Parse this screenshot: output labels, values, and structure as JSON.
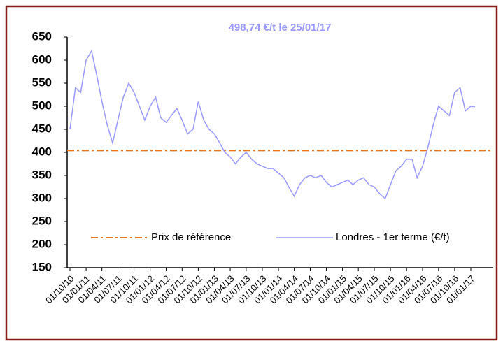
{
  "chart_data": {
    "type": "line",
    "title": "498,74 €/t le 25/01/17",
    "x": [
      "01/10/10",
      "01/11/10",
      "01/12/10",
      "01/01/11",
      "01/02/11",
      "01/03/11",
      "01/04/11",
      "01/05/11",
      "01/06/11",
      "01/07/11",
      "01/08/11",
      "01/09/11",
      "01/10/11",
      "01/11/11",
      "01/12/11",
      "01/01/12",
      "01/02/12",
      "01/03/12",
      "01/04/12",
      "01/05/12",
      "01/06/12",
      "01/07/12",
      "01/08/12",
      "01/09/12",
      "01/10/12",
      "01/11/12",
      "01/12/12",
      "01/01/13",
      "01/02/13",
      "01/03/13",
      "01/04/13",
      "01/05/13",
      "01/06/13",
      "01/07/13",
      "01/08/13",
      "01/09/13",
      "01/10/13",
      "01/11/13",
      "01/12/13",
      "01/01/14",
      "01/02/14",
      "01/03/14",
      "01/04/14",
      "01/05/14",
      "01/06/14",
      "01/07/14",
      "01/08/14",
      "01/09/14",
      "01/10/14",
      "01/11/14",
      "01/12/14",
      "01/01/15",
      "01/02/15",
      "01/03/15",
      "01/04/15",
      "01/05/15",
      "01/06/15",
      "01/07/15",
      "01/08/15",
      "01/09/15",
      "01/10/15",
      "01/11/15",
      "01/12/15",
      "01/01/16",
      "01/02/16",
      "01/03/16",
      "01/04/16",
      "01/05/16",
      "01/06/16",
      "01/07/16",
      "01/08/16",
      "01/09/16",
      "01/10/16",
      "01/11/16",
      "01/12/16",
      "01/01/17",
      "25/01/17"
    ],
    "series": [
      {
        "name": "Londres - 1er terme (€/t)",
        "color": "#9999ff",
        "values": [
          450,
          540,
          530,
          600,
          620,
          570,
          510,
          460,
          420,
          470,
          520,
          550,
          530,
          500,
          470,
          500,
          520,
          475,
          465,
          480,
          495,
          470,
          440,
          450,
          510,
          470,
          450,
          440,
          420,
          400,
          390,
          375,
          390,
          400,
          385,
          375,
          370,
          365,
          365,
          355,
          345,
          325,
          305,
          330,
          345,
          350,
          345,
          350,
          335,
          325,
          330,
          335,
          340,
          330,
          340,
          345,
          330,
          325,
          310,
          300,
          330,
          360,
          370,
          385,
          385,
          345,
          370,
          410,
          460,
          500,
          490,
          480,
          530,
          540,
          490,
          500,
          498.74
        ]
      }
    ],
    "reference_line": {
      "name": "Prix de référence",
      "value": 404,
      "color": "#e8761c"
    },
    "ylim": [
      150,
      650
    ],
    "yticks": [
      150,
      200,
      250,
      300,
      350,
      400,
      450,
      500,
      550,
      600,
      650
    ],
    "xticks": [
      "01/10/10",
      "01/01/11",
      "01/04/11",
      "01/07/11",
      "01/10/11",
      "01/01/12",
      "01/04/12",
      "01/07/12",
      "01/10/12",
      "01/01/13",
      "01/04/13",
      "01/07/13",
      "01/10/13",
      "01/01/14",
      "01/04/14",
      "01/07/14",
      "01/10/14",
      "01/01/15",
      "01/04/15",
      "01/07/15",
      "01/10/15",
      "01/01/16",
      "01/04/16",
      "01/07/16",
      "01/10/16",
      "01/01/17"
    ]
  }
}
